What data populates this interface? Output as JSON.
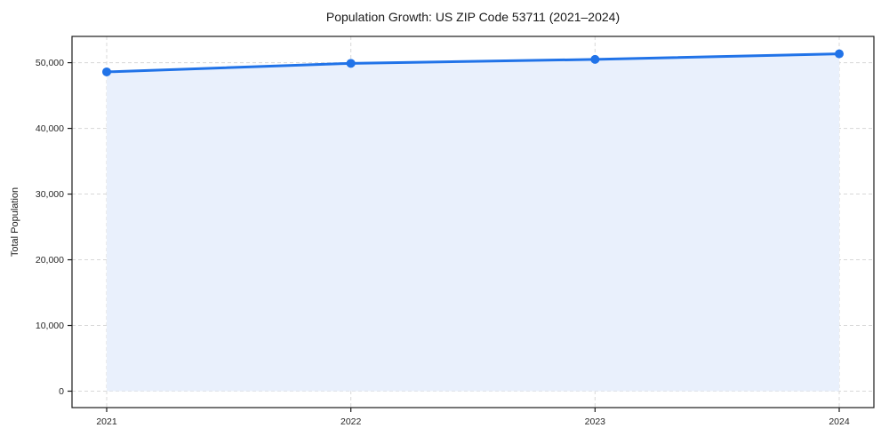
{
  "figure": {
    "background": "#ffffff"
  },
  "chart_data": {
    "type": "area",
    "title": "Population Growth: US ZIP Code 53711 (2021–2024)",
    "xlabel": "",
    "ylabel": "Total Population",
    "categories": [
      "2021",
      "2022",
      "2023",
      "2024"
    ],
    "series": [
      {
        "name": "Total Population",
        "values": [
          48600,
          49900,
          50500,
          51350
        ]
      }
    ],
    "fill_to_baseline": 0,
    "ylim": [
      -2500,
      54000
    ],
    "yticks": [
      {
        "value": 0,
        "label": "0"
      },
      {
        "value": 10000,
        "label": "10,000"
      },
      {
        "value": 20000,
        "label": "20,000"
      },
      {
        "value": 30000,
        "label": "30,000"
      },
      {
        "value": 40000,
        "label": "40,000"
      },
      {
        "value": 50000,
        "label": "50,000"
      }
    ],
    "grid": {
      "visible": true,
      "style": "dashed",
      "axes": "both"
    },
    "legend": {
      "visible": false
    },
    "marker": {
      "shape": "circle",
      "radius": 5
    },
    "line_width": 3,
    "colors": {
      "line": "#2173e8",
      "marker": "#2173e8",
      "fill": "#e9f0fc",
      "grid": "#d8d8d8",
      "spine": "#1a1a1a",
      "tick_text": "#262626",
      "title_text": "#1a1a1a"
    }
  }
}
